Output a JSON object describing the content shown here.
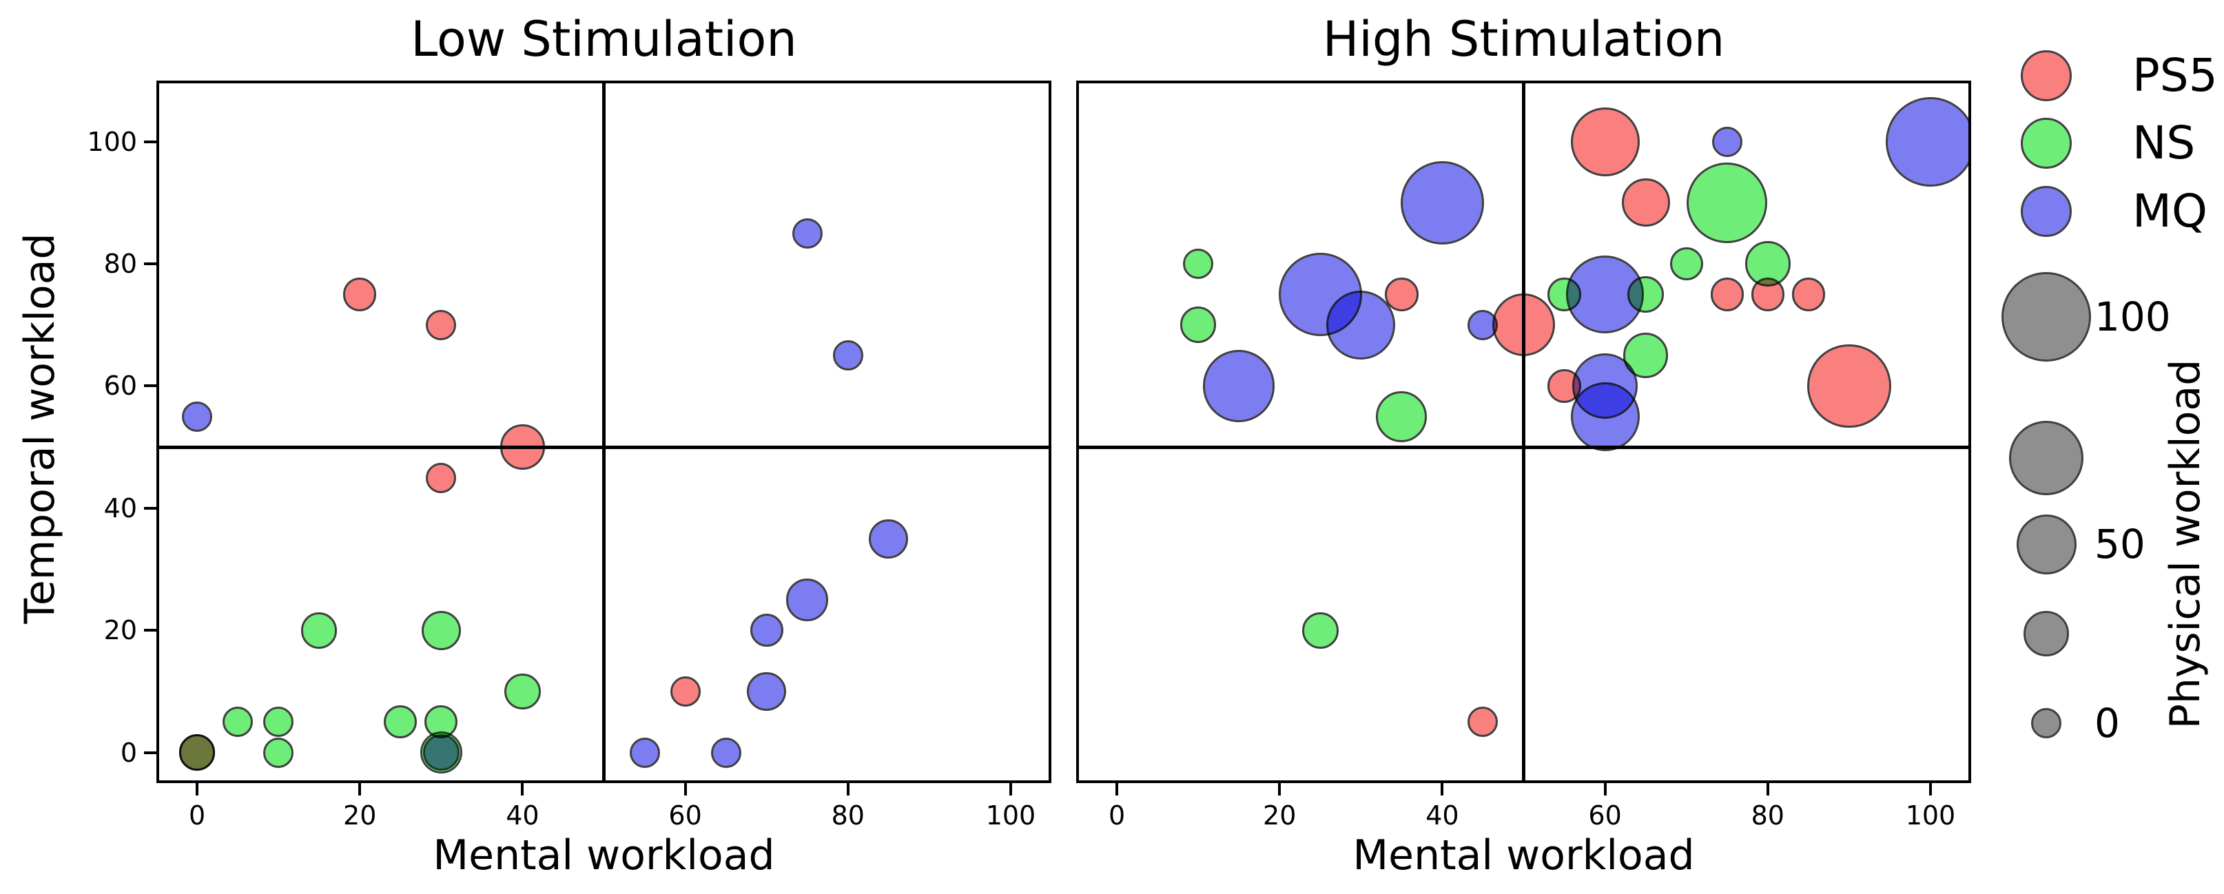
{
  "chart_data": {
    "type": "scatter",
    "subtype": "bubble-quadrant",
    "xlabel": "Mental workload",
    "ylabel": "Temporal workload",
    "xlim": [
      -5,
      105
    ],
    "ylim": [
      -5,
      110
    ],
    "xticks": [
      0,
      20,
      40,
      60,
      80,
      100
    ],
    "yticks": [
      0,
      20,
      40,
      60,
      80,
      100
    ],
    "quadrant_lines": {
      "x": 50,
      "y": 50
    },
    "grid": false,
    "point_format": [
      "mental_workload_x",
      "temporal_workload_y",
      "physical_workload_size"
    ],
    "panels": [
      {
        "title": "Low Stimulation",
        "series": [
          {
            "name": "PS5",
            "color": "#fa8080",
            "points": [
              [
                20,
                75,
                5
              ],
              [
                30,
                70,
                0
              ],
              [
                40,
                50,
                25
              ],
              [
                30,
                45,
                0
              ],
              [
                60,
                10,
                0
              ],
              [
                0,
                0,
                10
              ]
            ]
          },
          {
            "name": "NS",
            "color": "#6eee78",
            "points": [
              [
                15,
                20,
                10
              ],
              [
                30,
                20,
                15
              ],
              [
                40,
                10,
                10
              ],
              [
                5,
                5,
                0
              ],
              [
                10,
                5,
                0
              ],
              [
                25,
                5,
                5
              ],
              [
                30,
                5,
                5
              ],
              [
                10,
                0,
                0
              ],
              [
                30,
                0,
                20
              ],
              [
                0,
                0,
                10
              ]
            ]
          },
          {
            "name": "MQ",
            "color": "#7d7df2",
            "points": [
              [
                0,
                55,
                0
              ],
              [
                75,
                85,
                0
              ],
              [
                80,
                65,
                0
              ],
              [
                85,
                35,
                15
              ],
              [
                75,
                25,
                20
              ],
              [
                70,
                20,
                5
              ],
              [
                70,
                10,
                15
              ],
              [
                55,
                0,
                0
              ],
              [
                65,
                0,
                0
              ],
              [
                30,
                0,
                10
              ]
            ]
          }
        ]
      },
      {
        "title": "High Stimulation",
        "series": [
          {
            "name": "PS5",
            "color": "#fa8080",
            "points": [
              [
                60,
                100,
                65
              ],
              [
                65,
                90,
                30
              ],
              [
                35,
                75,
                5
              ],
              [
                50,
                70,
                55
              ],
              [
                75,
                75,
                5
              ],
              [
                80,
                75,
                5
              ],
              [
                85,
                75,
                5
              ],
              [
                90,
                60,
                90
              ],
              [
                55,
                60,
                5
              ],
              [
                45,
                5,
                0
              ]
            ]
          },
          {
            "name": "NS",
            "color": "#6eee78",
            "points": [
              [
                10,
                80,
                0
              ],
              [
                10,
                70,
                10
              ],
              [
                35,
                55,
                35
              ],
              [
                55,
                75,
                5
              ],
              [
                65,
                75,
                10
              ],
              [
                75,
                90,
                85
              ],
              [
                70,
                80,
                5
              ],
              [
                80,
                80,
                25
              ],
              [
                65,
                65,
                25
              ],
              [
                25,
                20,
                10
              ]
            ]
          },
          {
            "name": "MQ",
            "color": "#7d7df2",
            "points": [
              [
                40,
                90,
                90
              ],
              [
                25,
                75,
                90
              ],
              [
                30,
                70,
                65
              ],
              [
                15,
                60,
                70
              ],
              [
                45,
                70,
                0
              ],
              [
                60,
                75,
                80
              ],
              [
                60,
                60,
                60
              ],
              [
                60,
                55,
                65
              ],
              [
                75,
                100,
                0
              ],
              [
                100,
                100,
                100
              ]
            ]
          }
        ]
      }
    ],
    "legend": {
      "position": "right-top",
      "entries": [
        {
          "label": "PS5",
          "color": "#fa8080"
        },
        {
          "label": "NS",
          "color": "#6eee78"
        },
        {
          "label": "MQ",
          "color": "#7d7df2"
        }
      ]
    },
    "size_legend": {
      "title": "Physical workload",
      "circle_color": "#8f8f8f",
      "values": [
        100,
        75,
        50,
        25,
        0
      ],
      "labeled_values": [
        100,
        50,
        0
      ],
      "radius_px_at_0": 22,
      "radius_px_per_unit": 0.43
    }
  }
}
